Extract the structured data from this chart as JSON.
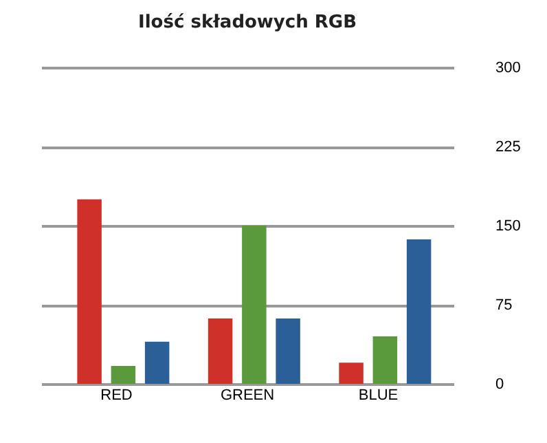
{
  "chart_data": {
    "type": "bar",
    "title": "Ilość składowych RGB",
    "categories": [
      "RED",
      "GREEN",
      "BLUE"
    ],
    "series": [
      {
        "color": "#d0302a",
        "values": [
          175,
          62,
          20
        ]
      },
      {
        "color": "#5a9a3c",
        "values": [
          17,
          150,
          45
        ]
      },
      {
        "color": "#2a5f98",
        "values": [
          40,
          62,
          137
        ]
      }
    ],
    "ylim": [
      0,
      300
    ],
    "yticks": [
      0,
      75,
      150,
      225,
      300
    ],
    "grid": "y"
  }
}
